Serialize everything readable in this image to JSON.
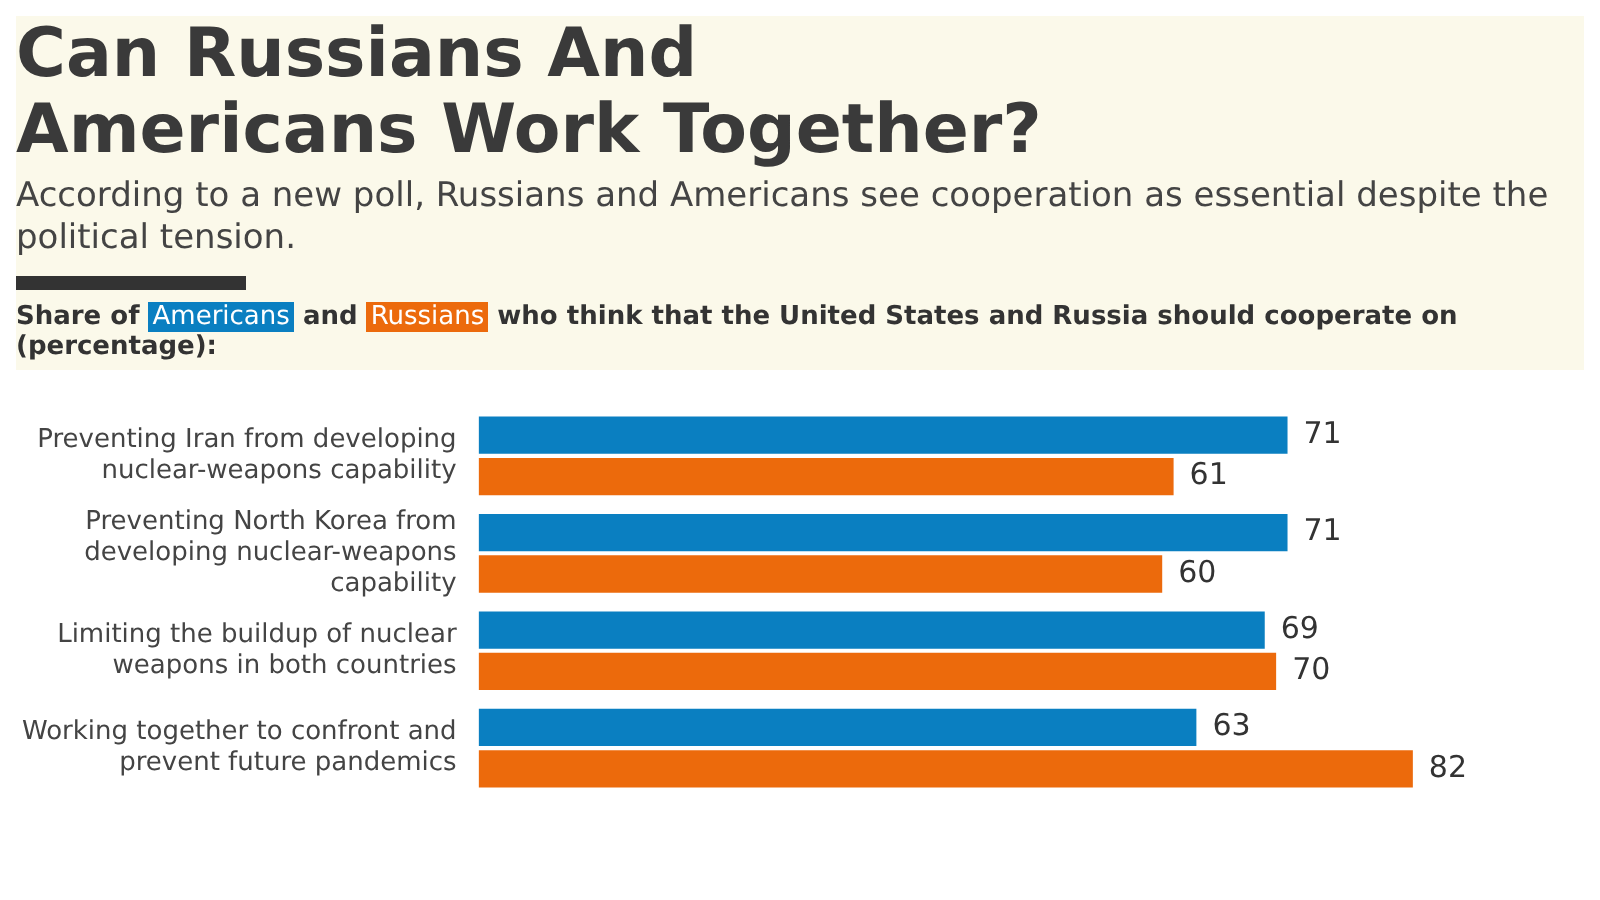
{
  "chart_data": {
    "type": "bar",
    "orientation": "horizontal",
    "title": "Can Russians And Americans Work Together?",
    "subtitle": "According to a new poll, Russians and Americans see cooperation as essential despite the political tension.",
    "annotations": [
      "Share of",
      "and",
      "who think that the United States and Russia should cooperate on (percentage):"
    ],
    "categories": [
      "Preventing Iran from developing nuclear-weapons capability",
      "Preventing North Korea from developing nuclear-weapons capability",
      "Limiting the buildup of nuclear weapons in both countries",
      "Working together to confront and prevent future pandemics"
    ],
    "series": [
      {
        "name": "Americans",
        "color": "#0a7fc1",
        "values": [
          71,
          71,
          69,
          63
        ]
      },
      {
        "name": "Russians",
        "color": "#ec6a0c",
        "values": [
          61,
          60,
          70,
          82
        ]
      }
    ],
    "data_labels": true,
    "legend": "top left"
  }
}
